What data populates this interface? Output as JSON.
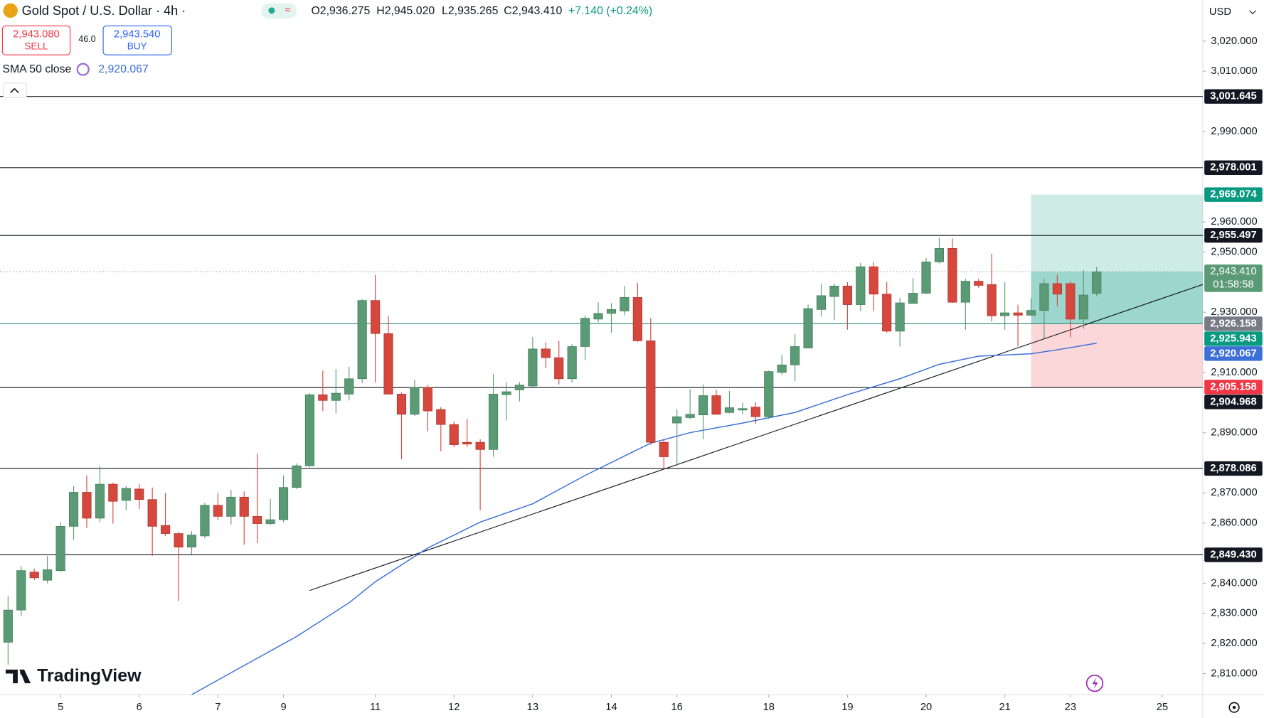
{
  "chart_data": {
    "type": "candlestick",
    "title": "Gold Spot / U.S. Dollar · 4h ·",
    "ohlc_legend": [
      "O2,936.275",
      "H2,945.020",
      "L2,935.265",
      "C2,943.410",
      "+7.140 (+0.24%)"
    ],
    "toolbar": {
      "sell_price": "2,943.080",
      "sell": "SELL",
      "spread": "46.0",
      "buy_price": "2,943.540",
      "buy": "BUY"
    },
    "currency": "USD",
    "brand": "TradingView",
    "up_color": "#5a9a74",
    "down_color": "#d6473e",
    "x": [
      0,
      1,
      2,
      3,
      4,
      5,
      6,
      7,
      8,
      9,
      10,
      11,
      12,
      13,
      14,
      15,
      16,
      17,
      18,
      19,
      20,
      21,
      22,
      23,
      24,
      25,
      26,
      27,
      28,
      29,
      30,
      31,
      32,
      33,
      34,
      35,
      36,
      37,
      38,
      39,
      40,
      41,
      42,
      43,
      44,
      45,
      46,
      47,
      48,
      49,
      50,
      51,
      52,
      53,
      54,
      55,
      56,
      57,
      58,
      59,
      60,
      61,
      62,
      63,
      64,
      65,
      66,
      67,
      68,
      69,
      70,
      71,
      72,
      73,
      74,
      75,
      76,
      77,
      78,
      79,
      80,
      81,
      82,
      83
    ],
    "open": [
      2820.4,
      2831.1,
      2843.7,
      2841.0,
      2844.2,
      2858.9,
      2870.2,
      2861.6,
      2872.9,
      2867.5,
      2871.3,
      2867.8,
      2859.2,
      2856.5,
      2852.0,
      2855.7,
      2865.9,
      2862.2,
      2868.6,
      2862.2,
      2859.8,
      2861.1,
      2871.8,
      2879.0,
      2902.6,
      2900.7,
      2902.8,
      2907.9,
      2933.9,
      2922.9,
      2902.8,
      2896.1,
      2905.0,
      2897.7,
      2892.7,
      2886.8,
      2886.8,
      2884.4,
      2902.6,
      2904.2,
      2905.5,
      2917.8,
      2914.9,
      2907.9,
      2918.6,
      2927.7,
      2929.6,
      2930.4,
      2934.9,
      2920.5,
      2886.8,
      2893.2,
      2895.0,
      2895.9,
      2902.3,
      2896.7,
      2897.5,
      2898.5,
      2895.3,
      2910.0,
      2912.5,
      2918.1,
      2930.9,
      2935.2,
      2938.7,
      2932.5,
      2945.1,
      2936.0,
      2923.7,
      2932.9,
      2936.3,
      2946.7,
      2951.2,
      2933.3,
      2940.3,
      2939.2,
      2928.8,
      2929.8,
      2929.0,
      2930.6,
      2939.5,
      2939.5,
      2927.7,
      2936.275
    ],
    "high": [
      2835.7,
      2845.6,
      2844.8,
      2849.1,
      2860.3,
      2872.3,
      2875.8,
      2879.0,
      2873.4,
      2872.3,
      2872.9,
      2871.8,
      2870.0,
      2857.1,
      2857.3,
      2866.7,
      2870.0,
      2871.0,
      2870.5,
      2883.0,
      2868.0,
      2875.8,
      2879.8,
      2903.1,
      2910.6,
      2911.1,
      2911.9,
      2934.4,
      2942.4,
      2928.8,
      2903.4,
      2907.6,
      2905.8,
      2898.5,
      2893.7,
      2894.5,
      2887.8,
      2909.5,
      2906.6,
      2906.8,
      2921.8,
      2920.0,
      2920.5,
      2919.4,
      2929.0,
      2933.3,
      2933.0,
      2938.7,
      2939.7,
      2928.0,
      2887.8,
      2897.7,
      2904.4,
      2906.0,
      2904.2,
      2903.9,
      2899.9,
      2900.1,
      2910.6,
      2915.9,
      2922.6,
      2932.5,
      2939.5,
      2939.5,
      2940.0,
      2946.4,
      2946.7,
      2940.0,
      2934.7,
      2941.3,
      2948.0,
      2954.7,
      2954.5,
      2941.1,
      2941.1,
      2949.4,
      2940.0,
      2932.5,
      2934.7,
      2941.1,
      2942.4,
      2940.3,
      2944.0,
      2945.02
    ],
    "low": [
      2812.9,
      2829.0,
      2841.0,
      2840.0,
      2843.7,
      2854.4,
      2858.4,
      2860.3,
      2859.8,
      2864.3,
      2864.6,
      2849.1,
      2855.7,
      2834.1,
      2849.6,
      2854.9,
      2861.1,
      2859.5,
      2852.8,
      2853.3,
      2859.2,
      2860.3,
      2871.3,
      2878.5,
      2897.2,
      2896.4,
      2900.7,
      2906.5,
      2906.6,
      2902.6,
      2881.2,
      2895.6,
      2890.5,
      2883.8,
      2885.2,
      2885.2,
      2864.3,
      2882.0,
      2894.0,
      2900.4,
      2905.0,
      2911.4,
      2906.0,
      2906.6,
      2914.1,
      2926.6,
      2923.2,
      2929.0,
      2920.2,
      2886.0,
      2877.7,
      2879.0,
      2894.5,
      2887.8,
      2895.9,
      2896.4,
      2896.1,
      2892.9,
      2894.5,
      2909.2,
      2907.1,
      2918.1,
      2928.5,
      2927.4,
      2924.2,
      2930.4,
      2930.4,
      2923.2,
      2918.6,
      2933.1,
      2936.0,
      2946.2,
      2933.1,
      2924.2,
      2938.1,
      2926.9,
      2924.2,
      2918.6,
      2928.8,
      2921.3,
      2932.0,
      2921.6,
      2924.5,
      2935.265
    ],
    "close": [
      2831.1,
      2844.2,
      2841.8,
      2844.5,
      2858.9,
      2870.2,
      2861.6,
      2872.9,
      2867.2,
      2871.5,
      2867.8,
      2858.9,
      2856.5,
      2852.0,
      2856.0,
      2865.9,
      2862.2,
      2868.6,
      2862.2,
      2859.8,
      2861.1,
      2871.8,
      2879.0,
      2902.6,
      2900.7,
      2903.1,
      2907.9,
      2933.9,
      2922.9,
      2902.8,
      2896.1,
      2905.0,
      2897.2,
      2892.7,
      2886.0,
      2886.2,
      2884.4,
      2902.8,
      2903.6,
      2905.8,
      2917.8,
      2914.9,
      2907.9,
      2918.6,
      2928.0,
      2929.6,
      2930.9,
      2934.9,
      2920.5,
      2886.8,
      2882.0,
      2895.3,
      2896.1,
      2902.3,
      2896.1,
      2898.3,
      2898.0,
      2895.3,
      2910.3,
      2912.5,
      2918.6,
      2931.2,
      2935.5,
      2938.7,
      2932.5,
      2945.1,
      2936.0,
      2923.7,
      2933.1,
      2936.3,
      2946.7,
      2951.2,
      2933.3,
      2940.3,
      2938.9,
      2928.8,
      2929.8,
      2929.0,
      2930.6,
      2939.5,
      2936.0,
      2927.7,
      2935.7,
      2943.41
    ],
    "sma": {
      "name": "SMA 50 close",
      "color": "#3d6fd8",
      "value_label": "2,920.067",
      "x": [
        14,
        18,
        22,
        26,
        28,
        32,
        36,
        40,
        44,
        48,
        49,
        52,
        56,
        60,
        64,
        68,
        71,
        74,
        78,
        80,
        83
      ],
      "values": [
        2803.0,
        2812.7,
        2822.3,
        2833.5,
        2840.5,
        2851.7,
        2860.3,
        2866.4,
        2875.8,
        2884.4,
        2886.5,
        2890.0,
        2893.2,
        2896.7,
        2902.6,
        2907.9,
        2912.7,
        2915.4,
        2916.2,
        2917.5,
        2919.7
      ]
    },
    "trendline": {
      "x": [
        23,
        91.09
      ],
      "values": [
        2837.6,
        2939.2
      ]
    },
    "levels": [
      {
        "value": 3001.645,
        "label": "3,001.645"
      },
      {
        "value": 2978.001,
        "label": "2,978.001"
      },
      {
        "value": 2955.497,
        "label": "2,955.497"
      },
      {
        "value": 2904.968,
        "label": "2,904.968"
      },
      {
        "value": 2878.086,
        "label": "2,878.086"
      },
      {
        "value": 2849.43,
        "label": "2,849.430"
      }
    ],
    "position": {
      "x_start": 78,
      "target": {
        "value": 2969.074,
        "label": "2,969.074"
      },
      "entry": {
        "value": 2926.158,
        "label": "2,926.158"
      },
      "stop": {
        "value": 2905.158,
        "label": "2,905.158"
      },
      "marker": {
        "value": 2925.943,
        "label": "2,925.943"
      }
    },
    "last_price": {
      "value": 2943.41,
      "label": "2,943.410",
      "countdown": "01:58:58"
    },
    "xlim": [
      -0.615,
      91.09
    ],
    "ylim": [
      2803.04,
      3033.64
    ],
    "yticks": [
      {
        "value": 3020,
        "label": "3,020.000"
      },
      {
        "value": 3010,
        "label": "3,010.000"
      },
      {
        "value": 2990,
        "label": "2,990.000"
      },
      {
        "value": 2960,
        "label": "2,960.000"
      },
      {
        "value": 2950,
        "label": "2,950.000"
      },
      {
        "value": 2930,
        "label": "2,930.000"
      },
      {
        "value": 2910,
        "label": "2,910.000"
      },
      {
        "value": 2890,
        "label": "2,890.000"
      },
      {
        "value": 2870,
        "label": "2,870.000"
      },
      {
        "value": 2860,
        "label": "2,860.000"
      },
      {
        "value": 2840,
        "label": "2,840.000"
      },
      {
        "value": 2830,
        "label": "2,830.000"
      },
      {
        "value": 2820,
        "label": "2,820.000"
      },
      {
        "value": 2810,
        "label": "2,810.000"
      }
    ],
    "xticks": [
      {
        "value": 4,
        "label": "5"
      },
      {
        "value": 10,
        "label": "6"
      },
      {
        "value": 16,
        "label": "7"
      },
      {
        "value": 21,
        "label": "9"
      },
      {
        "value": 28,
        "label": "11"
      },
      {
        "value": 34,
        "label": "12"
      },
      {
        "value": 40,
        "label": "13"
      },
      {
        "value": 46,
        "label": "14"
      },
      {
        "value": 51,
        "label": "16"
      },
      {
        "value": 58,
        "label": "18"
      },
      {
        "value": 64,
        "label": "19"
      },
      {
        "value": 70,
        "label": "20"
      },
      {
        "value": 76,
        "label": "21"
      },
      {
        "value": 81,
        "label": "23"
      },
      {
        "value": 88,
        "label": "25"
      }
    ]
  }
}
